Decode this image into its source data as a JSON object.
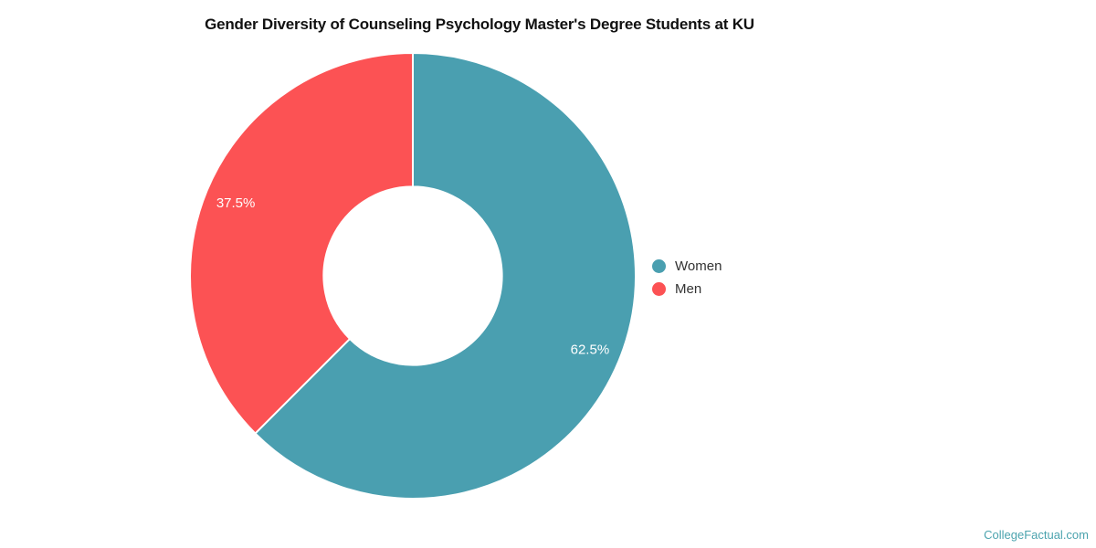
{
  "title": "Gender Diversity of Counseling Psychology Master's Degree Students at KU",
  "watermark": "CollegeFactual.com",
  "chart_data": {
    "type": "pie",
    "subtype": "donut",
    "title": "Gender Diversity of Counseling Psychology Master's Degree Students at KU",
    "series": [
      {
        "name": "Women",
        "value": 62.5,
        "label": "62.5%",
        "color": "#4A9FB0"
      },
      {
        "name": "Men",
        "value": 37.5,
        "label": "37.5%",
        "color": "#FC5254"
      }
    ],
    "start_angle_deg": 0,
    "direction": "clockwise",
    "inner_radius_ratio": 0.4,
    "legend_position": "right",
    "slice_border_color": "#FFFFFF",
    "label_color": "#FFFFFF",
    "background_color": "#FFFFFF"
  }
}
